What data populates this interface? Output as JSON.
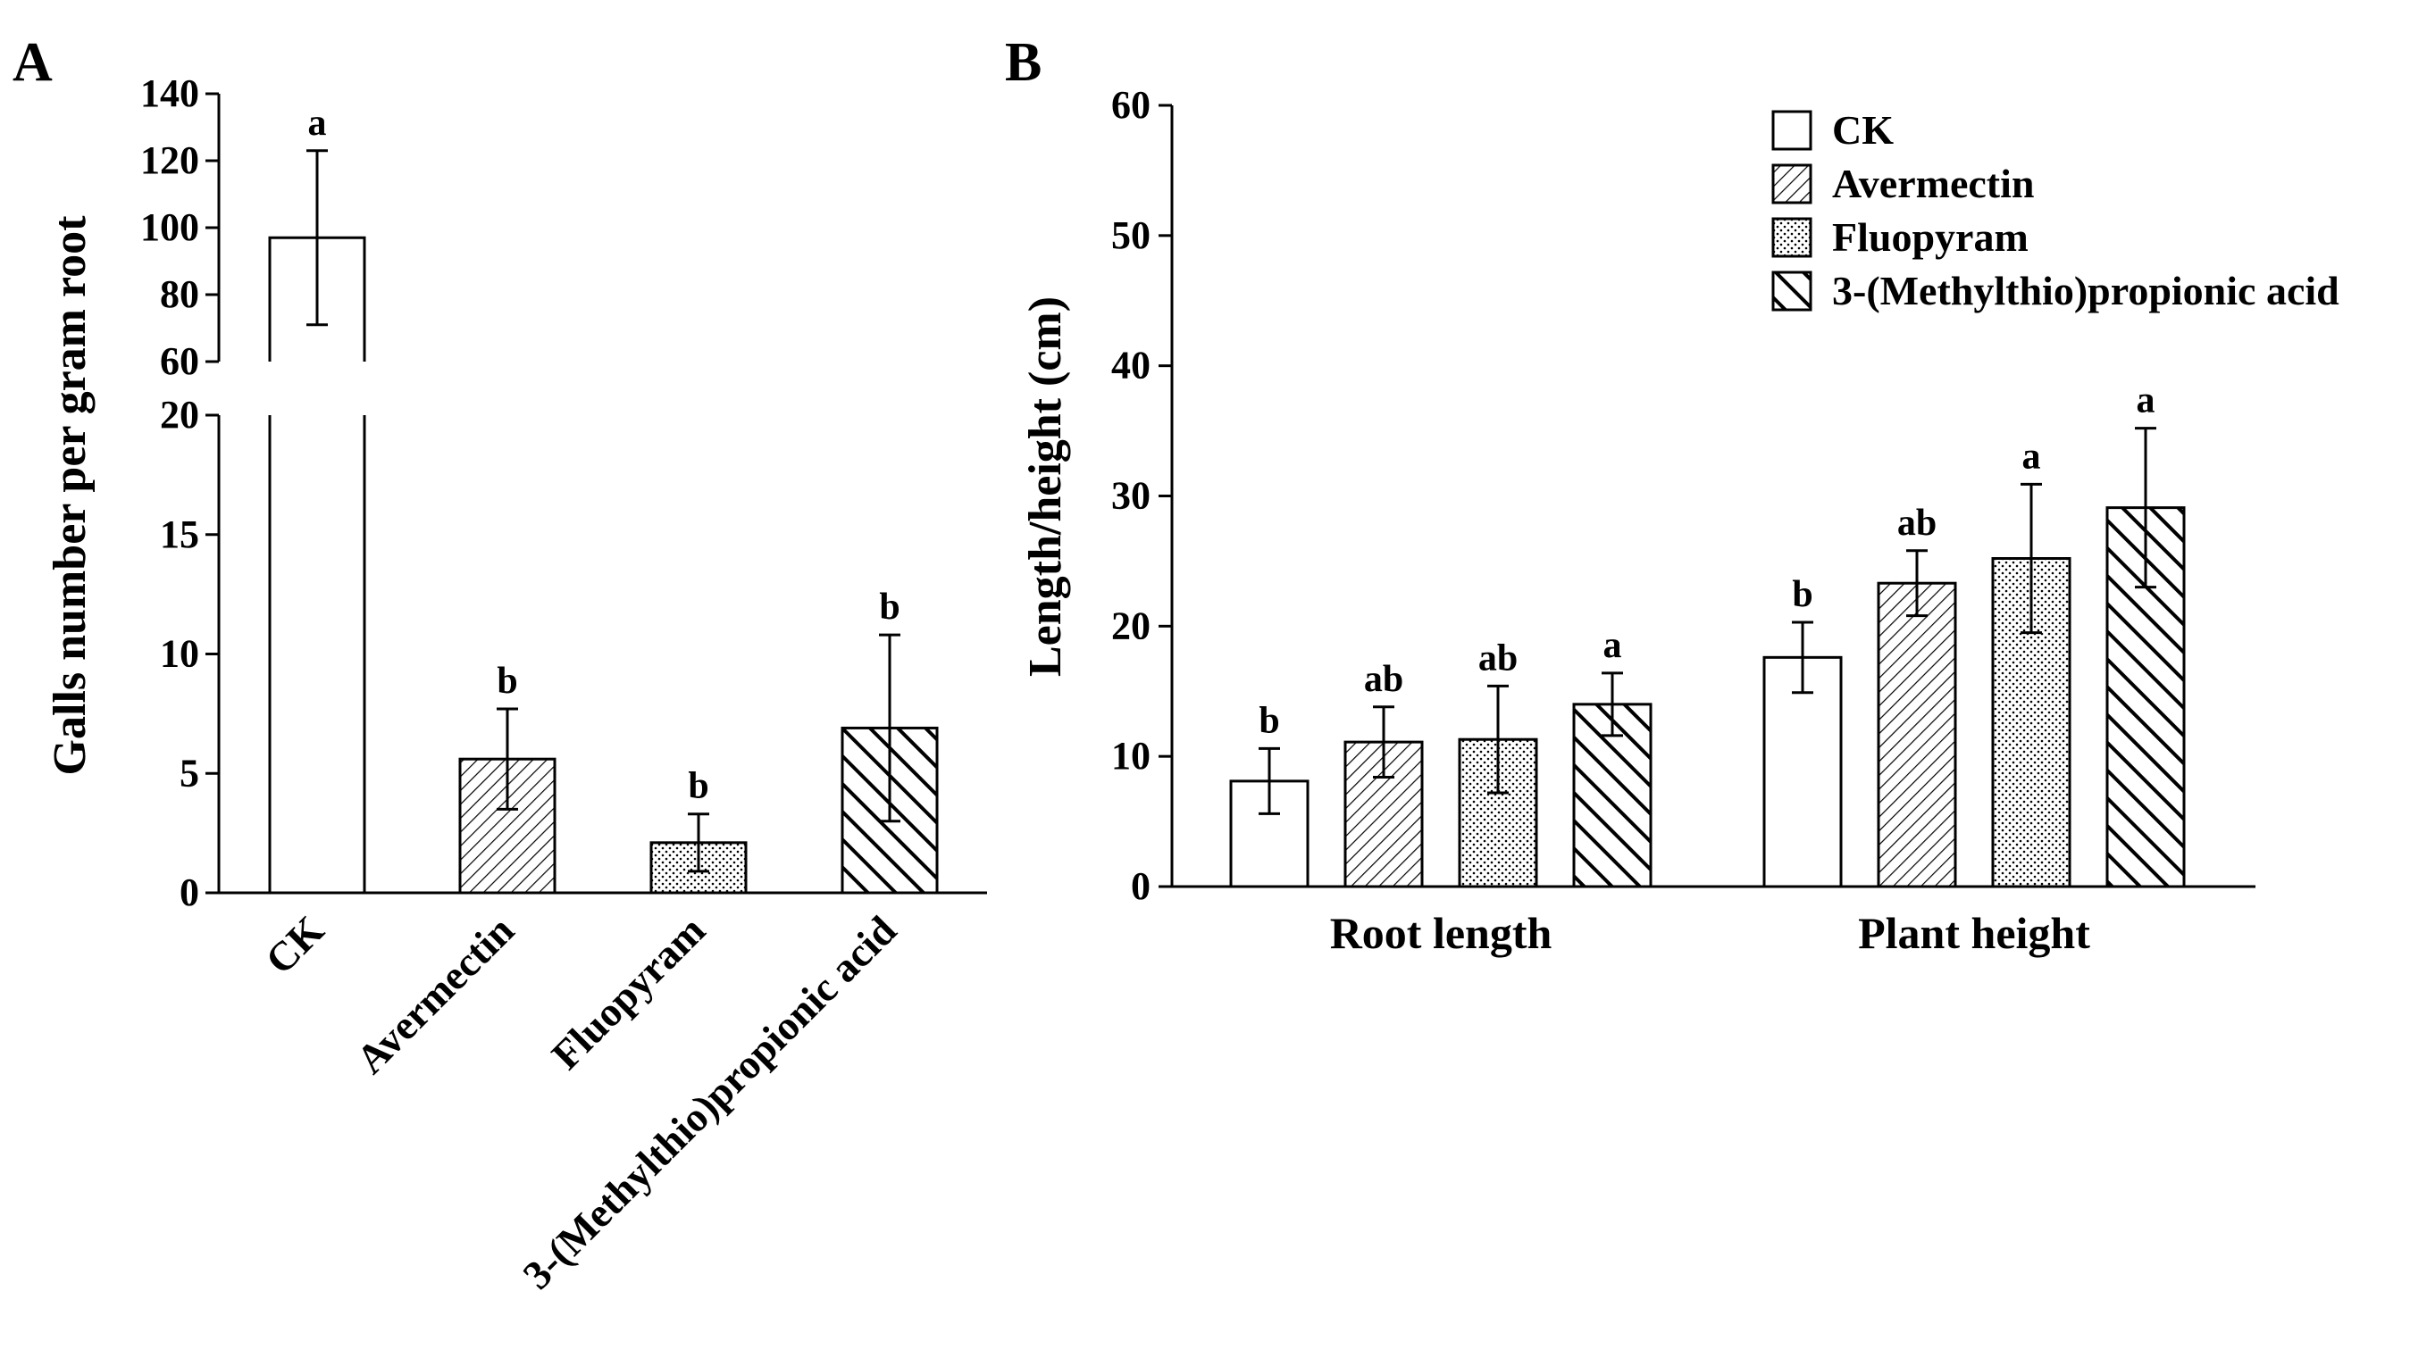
{
  "chart_data": [
    {
      "panel": "A",
      "type": "bar",
      "ylabel": "Galls number per gram root",
      "axis_break": {
        "lower_range": [
          0,
          20
        ],
        "upper_range": [
          60,
          140
        ]
      },
      "lower_ticks": [
        "0",
        "5",
        "10",
        "15",
        "20"
      ],
      "upper_ticks": [
        "60",
        "80",
        "100",
        "120",
        "140"
      ],
      "categories": [
        "CK",
        "Avermectin",
        "Fluopyram",
        "3-(Methylthio)propionic acid"
      ],
      "patterns": [
        "none",
        "dense",
        "dots",
        "wide"
      ],
      "values": [
        97,
        5.6,
        2.1,
        6.9
      ],
      "errors": [
        26,
        2.1,
        1.2,
        3.9
      ],
      "significance": [
        "a",
        "b",
        "b",
        "b"
      ]
    },
    {
      "panel": "B",
      "type": "bar",
      "ylabel": "Length/height (cm)",
      "ylim": [
        0,
        60
      ],
      "y_ticks": [
        "0",
        "10",
        "20",
        "30",
        "40",
        "50",
        "60"
      ],
      "groups": [
        "Root length",
        "Plant height"
      ],
      "series": [
        {
          "name": "CK",
          "pattern": "none",
          "values": [
            8.1,
            17.6
          ],
          "errors": [
            2.5,
            2.7
          ],
          "significance": [
            "b",
            "b"
          ]
        },
        {
          "name": "Avermectin",
          "pattern": "dense",
          "values": [
            11.1,
            23.3
          ],
          "errors": [
            2.7,
            2.5
          ],
          "significance": [
            "ab",
            "ab"
          ]
        },
        {
          "name": "Fluopyram",
          "pattern": "dots",
          "values": [
            11.3,
            25.2
          ],
          "errors": [
            4.1,
            5.7
          ],
          "significance": [
            "ab",
            "a"
          ]
        },
        {
          "name": "3-(Methylthio)propionic acid",
          "pattern": "wide",
          "values": [
            14.0,
            29.1
          ],
          "errors": [
            2.4,
            6.1
          ],
          "significance": [
            "a",
            "a"
          ]
        }
      ]
    }
  ]
}
